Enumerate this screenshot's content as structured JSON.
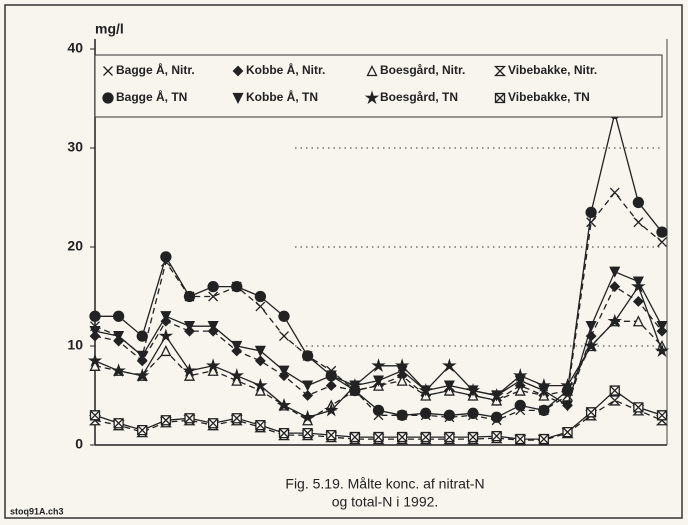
{
  "chart_data": {
    "type": "line",
    "ylabel": "mg/l",
    "caption": [
      "Fig. 5.19. Målte konc. af nitrat-N",
      "og total-N i 1992."
    ],
    "footer": "stoq91A.ch3",
    "categories": [
      null,
      null,
      null,
      null,
      null,
      null,
      null,
      null,
      null,
      null,
      null,
      null,
      null,
      null,
      null,
      null,
      null,
      null,
      null,
      null,
      null,
      null,
      null,
      null,
      null
    ],
    "ylim": [
      0,
      40
    ],
    "yticks": [
      0,
      10,
      20,
      30,
      40
    ],
    "grid": true,
    "series": [
      {
        "name": "Bagge Å, Nitr.",
        "color": "#222",
        "marker": "x",
        "dashed": true,
        "values": [
          12,
          11,
          9,
          18.5,
          15,
          15,
          16,
          14,
          11,
          9,
          7.5,
          5.5,
          3,
          3,
          3,
          2.8,
          3,
          2.5,
          3.5,
          3.5,
          5,
          22.5,
          25.5,
          22.5,
          20.5
        ]
      },
      {
        "name": "Kobbe Å, Nitr.",
        "color": "#222",
        "marker": "diamond",
        "dashed": true,
        "values": [
          11,
          10.5,
          8.5,
          12.5,
          11.5,
          11.5,
          9.5,
          8.5,
          7,
          5,
          6,
          5.5,
          6,
          7,
          5,
          5.5,
          5,
          4.5,
          6,
          5,
          4,
          11,
          16,
          14.5,
          11.5
        ]
      },
      {
        "name": "Boesgård, Nitr.",
        "color": "#222",
        "marker": "triangle",
        "dashed": true,
        "values": [
          8,
          7.5,
          7,
          9.5,
          7,
          7.5,
          6.5,
          5.5,
          4,
          2.5,
          4,
          5.5,
          6,
          6.5,
          5,
          5.5,
          5,
          4.5,
          5.5,
          5,
          5.5,
          10,
          12.5,
          12.5,
          10
        ]
      },
      {
        "name": "Vibebakke, Nitr.",
        "color": "#222",
        "marker": "hourglass",
        "dashed": true,
        "values": [
          2.5,
          2,
          1.3,
          2.3,
          2.5,
          2,
          2.5,
          1.8,
          1,
          1,
          0.8,
          0.6,
          0.6,
          0.6,
          0.6,
          0.6,
          0.6,
          0.7,
          0.5,
          0.5,
          1.2,
          3,
          4.5,
          3.5,
          2.5
        ]
      },
      {
        "name": "Bagge Å, TN",
        "color": "#222",
        "marker": "circle",
        "dashed": false,
        "values": [
          13,
          13,
          11,
          19,
          15,
          16,
          16,
          15,
          13,
          9,
          7,
          5.5,
          3.5,
          3,
          3.2,
          3,
          3.2,
          2.8,
          4,
          3.5,
          5.5,
          23.5,
          33.5,
          24.5,
          21.5
        ]
      },
      {
        "name": "Kobbe Å, TN",
        "color": "#222",
        "marker": "down",
        "dashed": false,
        "values": [
          11.5,
          11,
          9,
          13,
          12,
          12,
          10,
          9.5,
          7.5,
          6,
          7,
          6,
          6.5,
          7.5,
          5.5,
          6,
          5.5,
          5,
          6.5,
          5.5,
          4,
          12,
          17.5,
          16.5,
          12
        ]
      },
      {
        "name": "Boesgård, TN",
        "color": "#222",
        "marker": "star",
        "dashed": false,
        "values": [
          8.5,
          7.5,
          7,
          11,
          7.5,
          8,
          7,
          6,
          4,
          2.8,
          3.5,
          6,
          8,
          8,
          5.5,
          8,
          5.5,
          5,
          7,
          6,
          6,
          10,
          12.5,
          16,
          9.5
        ]
      },
      {
        "name": "Vibebakke, TN",
        "color": "#222",
        "marker": "box",
        "dashed": false,
        "values": [
          3,
          2.2,
          1.5,
          2.5,
          2.7,
          2.2,
          2.7,
          2,
          1.2,
          1.2,
          1,
          0.8,
          0.8,
          0.8,
          0.8,
          0.8,
          0.8,
          0.9,
          0.6,
          0.6,
          1.3,
          3.3,
          5.5,
          3.8,
          3
        ]
      }
    ]
  }
}
